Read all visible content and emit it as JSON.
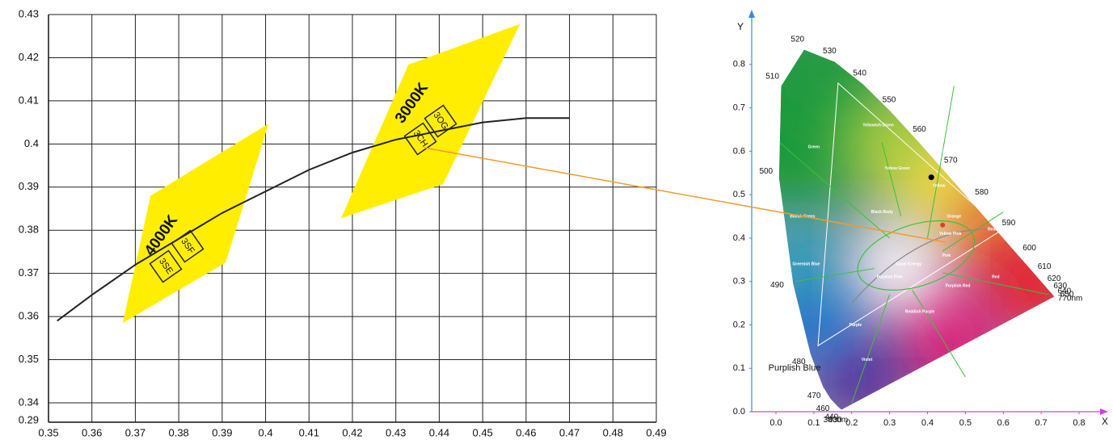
{
  "chart_data": [
    {
      "type": "binning",
      "xlim": [
        0.35,
        0.49
      ],
      "xticks": [
        0.35,
        0.36,
        0.37,
        0.38,
        0.39,
        0.4,
        0.41,
        0.42,
        0.43,
        0.44,
        0.45,
        0.46,
        0.47,
        0.48,
        0.49
      ],
      "ylim": [
        0.3355,
        0.43
      ],
      "yticks": [
        0.34,
        0.35,
        0.36,
        0.37,
        0.38,
        0.39,
        0.4,
        0.41,
        0.42,
        0.43
      ],
      "y_axis_bottom_label": "0.29",
      "grid": true,
      "series": [
        {
          "color": "#222222",
          "x": [
            0.352,
            0.36,
            0.37,
            0.38,
            0.39,
            0.4,
            0.41,
            0.42,
            0.43,
            0.44,
            0.45,
            0.46,
            0.47
          ],
          "values": [
            0.359,
            0.365,
            0.372,
            0.378,
            0.384,
            0.389,
            0.394,
            0.398,
            0.401,
            0.403,
            0.405,
            0.406,
            0.406
          ]
        }
      ],
      "regions": [
        {
          "label": "4000K",
          "color": "#ffee00",
          "bins": [
            "3SE",
            "3SF"
          ],
          "x": [
            0.3671,
            0.3735,
            0.4007,
            0.3908
          ],
          "y": [
            0.3585,
            0.388,
            0.4047,
            0.3725
          ]
        },
        {
          "label": "3000K",
          "color": "#ffee00",
          "bins": [
            "3CH",
            "3OG"
          ],
          "x": [
            0.4174,
            0.4329,
            0.4586,
            0.4409
          ],
          "y": [
            0.3828,
            0.4184,
            0.4278,
            0.3907
          ]
        }
      ]
    },
    {
      "type": "chromaticity",
      "x_label": "X",
      "y_label": "Y",
      "xlim": [
        -0.064,
        0.864
      ],
      "xticks": [
        {
          "value": 0,
          "label": "0.0"
        },
        0.1,
        0.2,
        0.3,
        0.4,
        0.5,
        0.6,
        0.7,
        0.8
      ],
      "ylim": [
        0,
        0.915
      ],
      "yticks": [
        {
          "value": 0,
          "label": "0.0"
        },
        0.1,
        0.2,
        0.3,
        0.4,
        0.5,
        0.6,
        0.7,
        0.8
      ],
      "locus": {
        "labels": [
          "380nm",
          "430",
          "440",
          "460",
          "470",
          "480",
          "490",
          "500",
          "510",
          "520",
          "530",
          "540",
          "550",
          "560",
          "570",
          "580",
          "590",
          "600",
          "610",
          "620",
          "630",
          "640",
          "650",
          "770nm"
        ],
        "x": [
          0.1741,
          0.1726,
          0.1644,
          0.144,
          0.1241,
          0.0913,
          0.0454,
          0.0082,
          0.0139,
          0.0743,
          0.1547,
          0.2296,
          0.3016,
          0.3731,
          0.4441,
          0.5125,
          0.5752,
          0.627,
          0.6658,
          0.6915,
          0.7079,
          0.719,
          0.726,
          0.7347
        ],
        "y": [
          0.005,
          0.0048,
          0.0109,
          0.0297,
          0.0578,
          0.1327,
          0.295,
          0.5384,
          0.7502,
          0.8338,
          0.8059,
          0.7543,
          0.6923,
          0.6245,
          0.5547,
          0.4866,
          0.4242,
          0.3725,
          0.334,
          0.3083,
          0.292,
          0.2809,
          0.274,
          0.2653
        ]
      },
      "region_labels": [
        "Green",
        "Yellowish Green",
        "Yellow Green",
        "Greenish Yellow",
        "Yellow",
        "Orange",
        "Reddish Orange",
        "Red",
        "Purplish Red",
        "Reddish Purple",
        "Purple",
        "Violet",
        "Bluish Green",
        "Greenish Blue",
        "Black Body",
        "Equal Energy",
        "Pink",
        "Yellow Pink",
        "Purplish Pink"
      ],
      "blue_label": "Purplish Blue"
    }
  ]
}
